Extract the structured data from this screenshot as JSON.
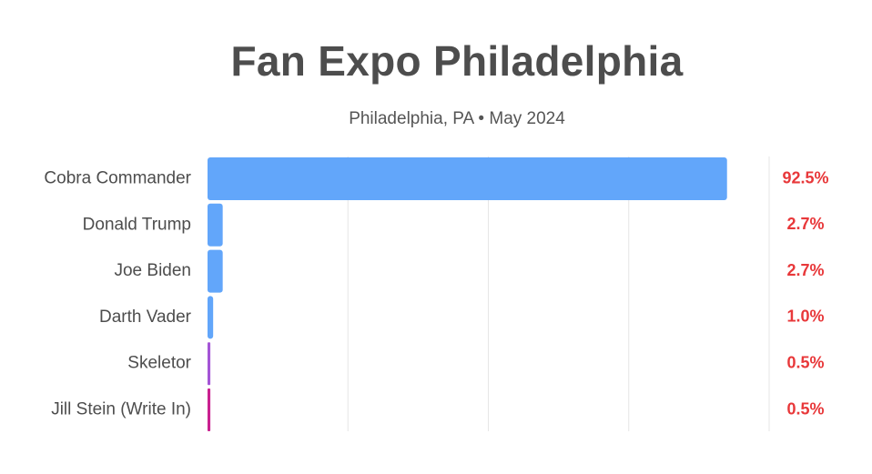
{
  "chart_data": {
    "type": "bar",
    "orientation": "horizontal",
    "title": "Fan Expo Philadelphia",
    "subtitle": "Philadelphia, PA • May 2024",
    "categories": [
      "Cobra Commander",
      "Donald Trump",
      "Joe Biden",
      "Darth Vader",
      "Skeletor",
      "Jill Stein (Write In)"
    ],
    "values": [
      92.5,
      2.7,
      2.7,
      1.0,
      0.5,
      0.5
    ],
    "value_labels": [
      "92.5%",
      "2.7%",
      "2.7%",
      "1.0%",
      "0.5%",
      "0.5%"
    ],
    "bar_colors": [
      "#62a6fa",
      "#62a6fa",
      "#62a6fa",
      "#62a6fa",
      "#a455d6",
      "#c9208f"
    ],
    "value_label_color": "#e8383a",
    "xlim": [
      0,
      100
    ],
    "grid": true,
    "legend": false
  }
}
